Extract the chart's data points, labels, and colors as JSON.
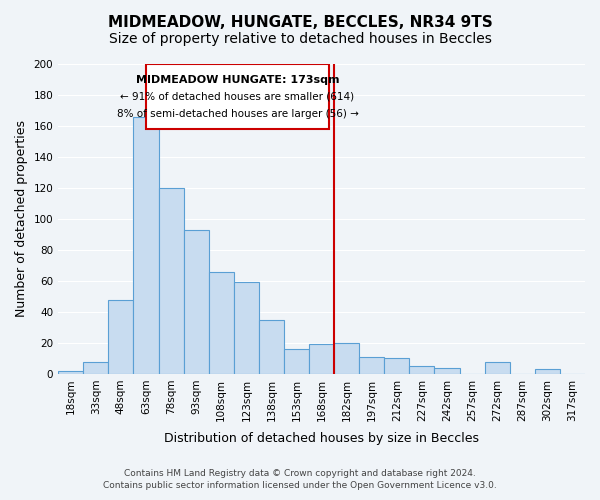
{
  "title": "MIDMEADOW, HUNGATE, BECCLES, NR34 9TS",
  "subtitle": "Size of property relative to detached houses in Beccles",
  "xlabel": "Distribution of detached houses by size in Beccles",
  "ylabel": "Number of detached properties",
  "categories": [
    "18sqm",
    "33sqm",
    "48sqm",
    "63sqm",
    "78sqm",
    "93sqm",
    "108sqm",
    "123sqm",
    "138sqm",
    "153sqm",
    "168sqm",
    "182sqm",
    "197sqm",
    "212sqm",
    "227sqm",
    "242sqm",
    "257sqm",
    "272sqm",
    "287sqm",
    "302sqm",
    "317sqm"
  ],
  "values": [
    2,
    8,
    48,
    166,
    120,
    93,
    66,
    59,
    35,
    16,
    19,
    20,
    11,
    10,
    5,
    4,
    0,
    8,
    0,
    3,
    0
  ],
  "bar_color": "#c8dcf0",
  "bar_edge_color": "#5a9fd4",
  "vline_x": 13.0,
  "vline_color": "#cc0000",
  "annotation_title": "MIDMEADOW HUNGATE: 173sqm",
  "annotation_line1": "← 91% of detached houses are smaller (614)",
  "annotation_line2": "8% of semi-detached houses are larger (56) →",
  "annotation_box_color": "#ffffff",
  "annotation_box_edge": "#cc0000",
  "ylim": [
    0,
    200
  ],
  "yticks": [
    0,
    20,
    40,
    60,
    80,
    100,
    120,
    140,
    160,
    180,
    200
  ],
  "footer_line1": "Contains HM Land Registry data © Crown copyright and database right 2024.",
  "footer_line2": "Contains public sector information licensed under the Open Government Licence v3.0.",
  "background_color": "#f0f4f8",
  "grid_color": "#ffffff",
  "title_fontsize": 11,
  "subtitle_fontsize": 10,
  "axis_label_fontsize": 9,
  "tick_fontsize": 7.5,
  "footer_fontsize": 6.5
}
